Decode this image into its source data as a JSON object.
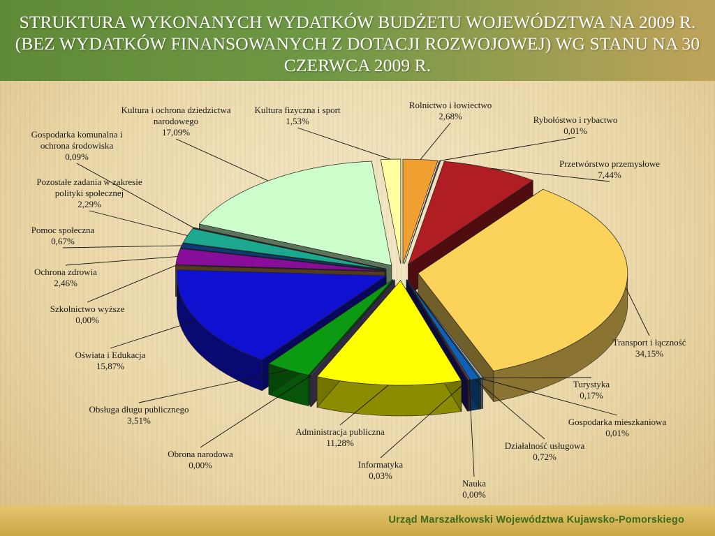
{
  "header": {
    "title": "Struktura wykonanych wydatków budżetu województwa na 2009 r. (bez wydatków finansowanych z dotacji rozwojowej) wg stanu na 30 czerwca 2009 r."
  },
  "footer": {
    "institution": "Urząd Marszałkowski Województwa Kujawsko-Pomorskiego"
  },
  "colors": {
    "title_bar": "#6f9845",
    "footer_text": "#3e6b1c"
  },
  "chart_data": {
    "type": "pie",
    "title": "",
    "slices": [
      {
        "label": "Rolnictwo i łowiectwo",
        "value_label": "2,68%",
        "value": 2.68,
        "color": "#f0a030"
      },
      {
        "label": "Rybołóstwo i rybactwo",
        "value_label": "0,01%",
        "value": 0.01,
        "color": "#6b3a8c"
      },
      {
        "label": "Przetwórstwo przemysłowe",
        "value_label": "7,44%",
        "value": 7.44,
        "color": "#b01d22"
      },
      {
        "label": "Transport i łączność",
        "value_label": "34,15%",
        "value": 34.15,
        "color": "#fcd35a"
      },
      {
        "label": "Turystyka",
        "value_label": "0,17%",
        "value": 0.17,
        "color": "#a9b4e6"
      },
      {
        "label": "Gospodarka mieszkaniowa",
        "value_label": "0,01%",
        "value": 0.01,
        "color": "#1ea392"
      },
      {
        "label": "Działalność usługowa",
        "value_label": "0,72%",
        "value": 0.72,
        "color": "#1060b8"
      },
      {
        "label": "Nauka",
        "value_label": "0,00%",
        "value": 0.0,
        "color": "#e05010"
      },
      {
        "label": "Informatyka",
        "value_label": "0,03%",
        "value": 0.03,
        "color": "#1a1a7a"
      },
      {
        "label": "Administracja publiczna",
        "value_label": "11,28%",
        "value": 11.28,
        "color": "#ffff00"
      },
      {
        "label": "Obrona narodowa",
        "value_label": "0,00%",
        "value": 0.0,
        "color": "#6a5a8c"
      },
      {
        "label": "Obsługa długu publicznego",
        "value_label": "3,51%",
        "value": 3.51,
        "color": "#0b9a11"
      },
      {
        "label": "Oświata i Edukacja",
        "value_label": "15,87%",
        "value": 15.87,
        "color": "#1010d0"
      },
      {
        "label": "Szkolnictwo wyższe",
        "value_label": "0,00%",
        "value": 0.0,
        "color": "#c08040"
      },
      {
        "label": "Ochrona zdrowia",
        "value_label": "2,46%",
        "value": 2.46,
        "color": "#880d9a"
      },
      {
        "label": "Pomoc społeczna",
        "value_label": "0,67%",
        "value": 0.67,
        "color": "#0e3a7a"
      },
      {
        "label": "Pozostałe zadania w zakresie polityki społecznej",
        "value_label": "2,29%",
        "value": 2.29,
        "color": "#1ba88f"
      },
      {
        "label": "Gospodarka komunalna i ochrona środowiska",
        "value_label": "0,09%",
        "value": 0.09,
        "color": "#7a5c2a"
      },
      {
        "label": "Kultura i ochrona dziedzictwa narodowego",
        "value_label": "17,09%",
        "value": 17.09,
        "color": "#ccffcc"
      },
      {
        "label": "Kultura fizyczna i sport",
        "value_label": "1,53%",
        "value": 1.53,
        "color": "#fffea0"
      }
    ]
  }
}
